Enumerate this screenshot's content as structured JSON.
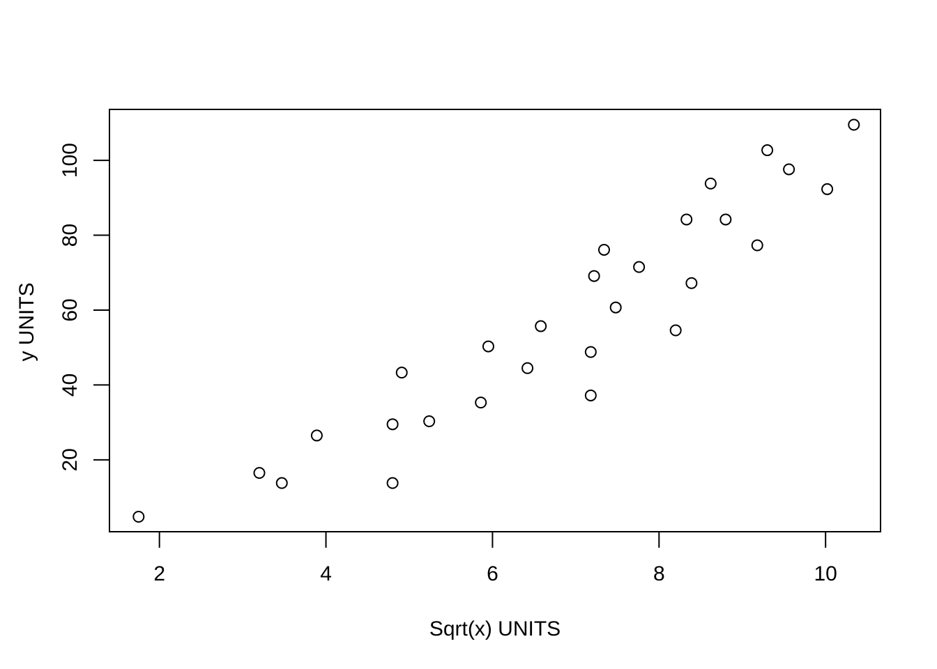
{
  "chart_data": {
    "type": "scatter",
    "title": "",
    "xlabel": "Sqrt(x) UNITS",
    "ylabel": "y UNITS",
    "x_ticks": [
      2,
      4,
      6,
      8,
      10
    ],
    "y_ticks": [
      20,
      40,
      60,
      80,
      100
    ],
    "xlim": [
      1.4,
      10.66
    ],
    "ylim": [
      0.8,
      113.6
    ],
    "grid": false,
    "legend": "none",
    "marker": "open-circle",
    "color": "#000000",
    "points": [
      {
        "x": 1.75,
        "y": 4.8
      },
      {
        "x": 3.2,
        "y": 16.5
      },
      {
        "x": 3.47,
        "y": 13.8
      },
      {
        "x": 3.89,
        "y": 26.5
      },
      {
        "x": 4.8,
        "y": 29.5
      },
      {
        "x": 4.8,
        "y": 13.8
      },
      {
        "x": 4.91,
        "y": 43.3
      },
      {
        "x": 5.24,
        "y": 30.3
      },
      {
        "x": 5.86,
        "y": 35.3
      },
      {
        "x": 5.95,
        "y": 50.3
      },
      {
        "x": 6.42,
        "y": 44.5
      },
      {
        "x": 6.58,
        "y": 55.7
      },
      {
        "x": 7.18,
        "y": 48.8
      },
      {
        "x": 7.18,
        "y": 37.2
      },
      {
        "x": 7.22,
        "y": 69.1
      },
      {
        "x": 7.34,
        "y": 76.1
      },
      {
        "x": 7.48,
        "y": 60.7
      },
      {
        "x": 7.76,
        "y": 71.5
      },
      {
        "x": 8.2,
        "y": 54.6
      },
      {
        "x": 8.33,
        "y": 84.2
      },
      {
        "x": 8.39,
        "y": 67.2
      },
      {
        "x": 8.62,
        "y": 93.8
      },
      {
        "x": 8.8,
        "y": 84.2
      },
      {
        "x": 9.18,
        "y": 77.3
      },
      {
        "x": 9.3,
        "y": 102.7
      },
      {
        "x": 9.56,
        "y": 97.6
      },
      {
        "x": 10.02,
        "y": 92.3
      },
      {
        "x": 10.34,
        "y": 109.5
      }
    ]
  }
}
